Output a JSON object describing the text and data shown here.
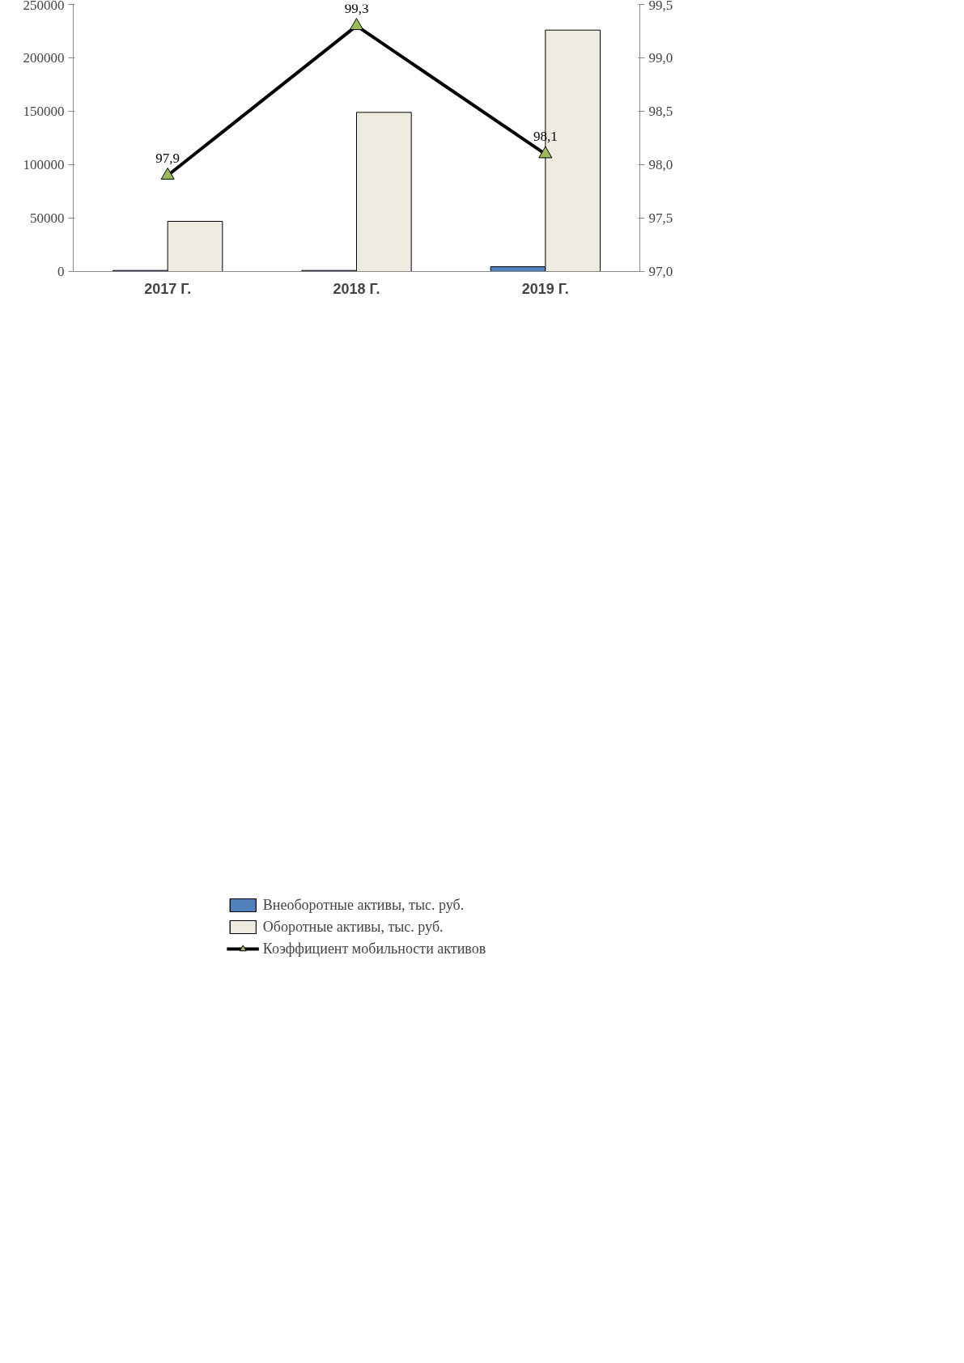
{
  "chart_data": {
    "type": "bar",
    "categories": [
      "2017 Г.",
      "2018 Г.",
      "2019 Г."
    ],
    "series": [
      {
        "name": "Внеоборотные активы, тыс. руб.",
        "color": "#4f81bd",
        "values": [
          1000,
          1000,
          4500
        ]
      },
      {
        "name": "Оборотные активы, тыс. руб.",
        "color": "#eeece1",
        "values": [
          47000,
          149000,
          226000
        ]
      },
      {
        "name": "Коэффициент мобильности активов",
        "type": "line",
        "axis": "y2",
        "color": "#000000",
        "marker": "triangle",
        "values": [
          97.9,
          99.3,
          98.1
        ],
        "value_labels": [
          "97,9",
          "99,3",
          "98,1"
        ]
      }
    ],
    "ylim": [
      0,
      250000
    ],
    "yticks": [
      0,
      50000,
      100000,
      150000,
      200000,
      250000
    ],
    "y2lim": [
      97.0,
      99.5
    ],
    "y2ticks": [
      {
        "value": 97.0,
        "label": "97,0"
      },
      {
        "value": 97.5,
        "label": "97,5"
      },
      {
        "value": 98.0,
        "label": "98,0"
      },
      {
        "value": 98.5,
        "label": "98,5"
      },
      {
        "value": 99.0,
        "label": "99,0"
      },
      {
        "value": 99.5,
        "label": "99,5"
      }
    ],
    "grid": false,
    "legend": "bottom"
  }
}
